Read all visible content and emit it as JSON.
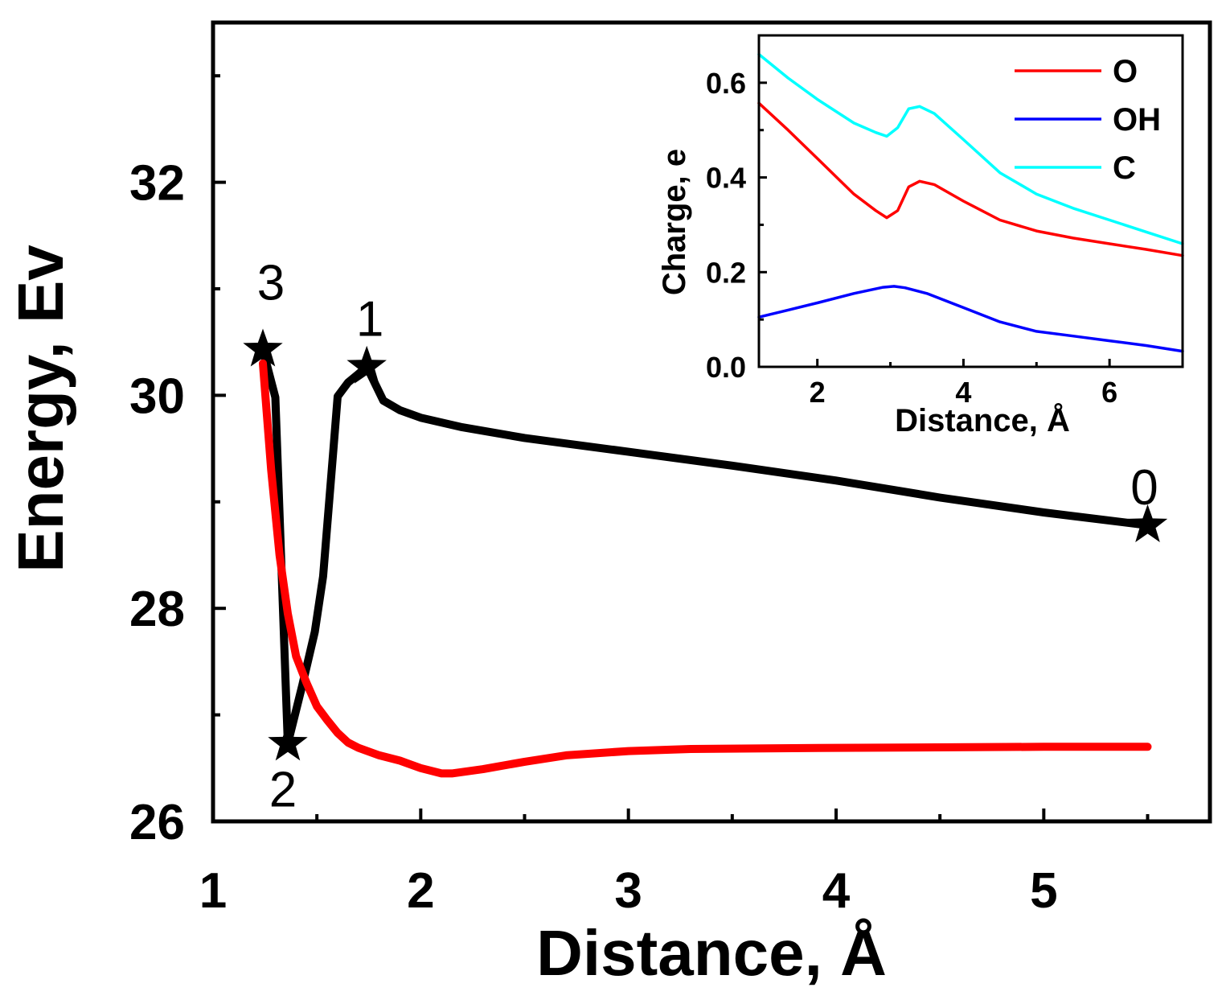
{
  "chart_data": [
    {
      "type": "line",
      "role": "main",
      "title": "",
      "xlabel": "Distance, Å",
      "ylabel": "Energy, Ev",
      "xlim": [
        1,
        5.8
      ],
      "ylim": [
        26,
        33.5
      ],
      "xticks": [
        1,
        2,
        3,
        4,
        5
      ],
      "xtick_labels": [
        "1",
        "2",
        "3",
        "4",
        "5"
      ],
      "yticks": [
        26,
        28,
        30,
        32
      ],
      "ytick_labels": [
        "26",
        "28",
        "30",
        "32"
      ],
      "series": [
        {
          "name": "black",
          "color": "#000000",
          "x": [
            1.24,
            1.3,
            1.36,
            1.43,
            1.49,
            1.53,
            1.58,
            1.6,
            1.65,
            1.7,
            1.74,
            1.82,
            1.9,
            2.0,
            2.2,
            2.5,
            3.0,
            3.5,
            4.0,
            4.5,
            5.0,
            5.5
          ],
          "y": [
            30.43,
            29.98,
            26.73,
            27.28,
            27.78,
            28.3,
            29.5,
            29.99,
            30.12,
            30.2,
            30.27,
            29.95,
            29.86,
            29.79,
            29.7,
            29.6,
            29.47,
            29.34,
            29.2,
            29.04,
            28.9,
            28.78
          ]
        },
        {
          "name": "red",
          "color": "#ff0000",
          "x": [
            1.24,
            1.28,
            1.32,
            1.36,
            1.4,
            1.45,
            1.5,
            1.55,
            1.6,
            1.65,
            1.7,
            1.8,
            1.9,
            2.0,
            2.1,
            2.15,
            2.3,
            2.5,
            2.7,
            3.0,
            3.3,
            4.0,
            5.0,
            5.5
          ],
          "y": [
            30.3,
            29.3,
            28.5,
            27.95,
            27.55,
            27.3,
            27.08,
            26.95,
            26.83,
            26.74,
            26.69,
            26.62,
            26.57,
            26.5,
            26.45,
            26.45,
            26.49,
            26.56,
            26.62,
            26.66,
            26.68,
            26.69,
            26.7,
            26.7
          ]
        }
      ],
      "markers": [
        {
          "label": "3",
          "x": 1.24,
          "y": 30.43
        },
        {
          "label": "2",
          "x": 1.36,
          "y": 26.73
        },
        {
          "label": "1",
          "x": 1.74,
          "y": 30.27
        },
        {
          "label": "0",
          "x": 5.5,
          "y": 28.78
        }
      ]
    },
    {
      "type": "line",
      "role": "inset",
      "title": "",
      "xlabel": "Distance, Å",
      "ylabel": "Charge, e",
      "xlim": [
        1.2,
        7.0
      ],
      "ylim": [
        0.0,
        0.7
      ],
      "xticks": [
        2,
        4,
        6
      ],
      "xtick_labels": [
        "2",
        "4",
        "6"
      ],
      "yticks": [
        0.0,
        0.2,
        0.4,
        0.6
      ],
      "ytick_labels": [
        "0.0",
        "0.2",
        "0.4",
        "0.6"
      ],
      "legend_position": "top-right",
      "series": [
        {
          "name": "O",
          "color": "#ff0000",
          "x": [
            1.2,
            1.6,
            2.0,
            2.5,
            2.8,
            2.95,
            3.1,
            3.25,
            3.4,
            3.6,
            4.0,
            4.5,
            5.0,
            5.5,
            6.0,
            6.5,
            7.0
          ],
          "y": [
            0.557,
            0.5,
            0.44,
            0.365,
            0.33,
            0.315,
            0.33,
            0.38,
            0.392,
            0.385,
            0.35,
            0.31,
            0.287,
            0.272,
            0.26,
            0.248,
            0.235
          ]
        },
        {
          "name": "OH",
          "color": "#0000ff",
          "x": [
            1.2,
            1.6,
            2.0,
            2.5,
            2.9,
            3.05,
            3.2,
            3.5,
            4.0,
            4.5,
            5.0,
            5.5,
            6.0,
            6.5,
            7.0
          ],
          "y": [
            0.105,
            0.12,
            0.135,
            0.155,
            0.168,
            0.17,
            0.167,
            0.155,
            0.125,
            0.095,
            0.075,
            0.065,
            0.055,
            0.045,
            0.033
          ]
        },
        {
          "name": "C",
          "color": "#00ffff",
          "x": [
            1.2,
            1.6,
            2.0,
            2.5,
            2.8,
            2.95,
            3.1,
            3.25,
            3.4,
            3.6,
            4.0,
            4.5,
            5.0,
            5.5,
            6.0,
            6.5,
            7.0
          ],
          "y": [
            0.66,
            0.61,
            0.565,
            0.515,
            0.495,
            0.487,
            0.505,
            0.545,
            0.55,
            0.535,
            0.48,
            0.41,
            0.365,
            0.335,
            0.31,
            0.285,
            0.26
          ]
        }
      ]
    }
  ]
}
